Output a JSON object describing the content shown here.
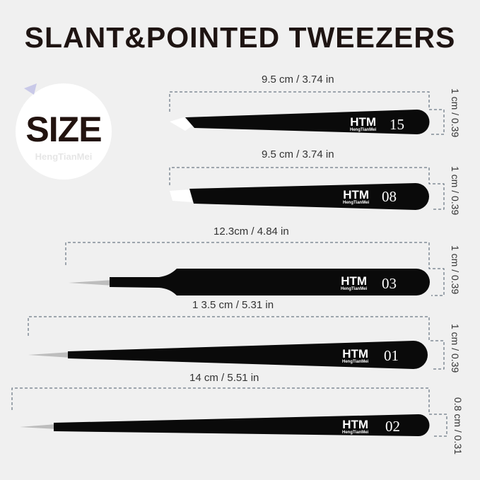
{
  "title": "SLANT&POINTED TWEEZERS",
  "badge": {
    "text": "SIZE",
    "watermark": "HengTianMei"
  },
  "tweezers": [
    {
      "length": "9.5 cm / 3.74 in",
      "width": "1 cm / 0.39",
      "logo": "HTM",
      "brand": "HengTianMei",
      "number": "15",
      "tip": "slant"
    },
    {
      "length": "9.5 cm / 3.74 in",
      "width": "1 cm / 0.39",
      "logo": "HTM",
      "brand": "HengTianMei",
      "number": "08",
      "tip": "flat"
    },
    {
      "length": "12.3cm / 4.84 in",
      "width": "1 cm / 0.39",
      "logo": "HTM",
      "brand": "HengTianMei",
      "number": "03",
      "tip": "pointed"
    },
    {
      "length": "1 3.5 cm / 5.31 in",
      "width": "1 cm / 0.39",
      "logo": "HTM",
      "brand": "HengTianMei",
      "number": "01",
      "tip": "pointed"
    },
    {
      "length": "14 cm / 5.51 in",
      "width": "0.8 cm / 0.31",
      "logo": "HTM",
      "brand": "HengTianMei",
      "number": "02",
      "tip": "pointed"
    }
  ],
  "colors": {
    "background": "#f0f0f0",
    "title": "#1e1412",
    "tweezer": "#0a0a0a",
    "dash": "#4a5a6a"
  }
}
